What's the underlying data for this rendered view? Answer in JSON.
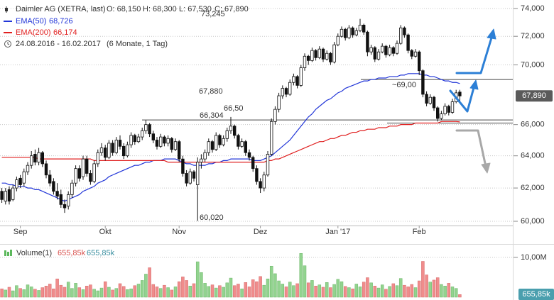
{
  "chart_data": {
    "type": "candlestick",
    "title": "Daimler AG (XETRA, last)",
    "ohlc_labels": [
      "O: 68,150",
      "H: 68,300",
      "L: 67,530",
      "C: 67,890"
    ],
    "date_range": "24.08.2016 - 16.02.2017",
    "period": "(6 Monate, 1 Tag)",
    "categories": [
      null,
      null,
      null,
      null,
      null,
      "Sep",
      null,
      null,
      null,
      null,
      null,
      null,
      null,
      null,
      null,
      null,
      null,
      null,
      null,
      null,
      null,
      null,
      null,
      null,
      null,
      null,
      null,
      null,
      "Okt",
      null,
      null,
      null,
      null,
      null,
      null,
      null,
      null,
      null,
      null,
      null,
      null,
      null,
      null,
      null,
      null,
      null,
      null,
      null,
      "Nov",
      null,
      null,
      null,
      null,
      null,
      null,
      null,
      null,
      null,
      null,
      null,
      null,
      null,
      null,
      null,
      null,
      null,
      null,
      null,
      null,
      null,
      "Dez",
      null,
      null,
      null,
      null,
      null,
      null,
      null,
      null,
      null,
      null,
      null,
      null,
      null,
      null,
      null,
      null,
      null,
      null,
      null,
      null,
      "Jan '17",
      null,
      null,
      null,
      null,
      null,
      null,
      null,
      null,
      null,
      null,
      null,
      null,
      null,
      null,
      null,
      null,
      null,
      null,
      null,
      null,
      null,
      "Feb",
      null,
      null,
      null,
      null,
      null,
      null,
      null,
      null,
      null,
      null,
      null
    ],
    "open": [
      61.8,
      61.2,
      61.9,
      61.3,
      62.0,
      62.6,
      62.3,
      63.0,
      63.4,
      64.1,
      63.6,
      64.2,
      63.5,
      62.8,
      62.4,
      61.8,
      61.6,
      61.0,
      60.9,
      61.6,
      62.3,
      63.2,
      62.7,
      63.8,
      62.9,
      62.4,
      63.5,
      64.2,
      64.5,
      63.9,
      64.8,
      64.2,
      65.0,
      64.6,
      64.0,
      64.7,
      65.3,
      64.9,
      65.2,
      65.6,
      66.0,
      65.4,
      65.0,
      64.6,
      65.2,
      64.8,
      65.1,
      64.4,
      64.9,
      63.8,
      62.9,
      62.3,
      63.0,
      62.2,
      63.6,
      63.8,
      64.2,
      64.9,
      64.4,
      65.3,
      64.7,
      65.1,
      65.6,
      65.9,
      65.3,
      64.6,
      64.9,
      64.2,
      63.9,
      63.2,
      62.4,
      62.0,
      62.8,
      64.1,
      66.2,
      67.0,
      67.9,
      68.4,
      68.0,
      68.8,
      69.2,
      68.6,
      69.8,
      70.6,
      70.3,
      71.0,
      70.5,
      71.1,
      70.4,
      70.8,
      70.2,
      71.4,
      72.0,
      72.5,
      71.9,
      72.6,
      72.1,
      72.4,
      72.8,
      72.3,
      70.9,
      71.2,
      70.4,
      70.9,
      71.3,
      70.7,
      71.2,
      70.8,
      71.5,
      72.6,
      72.1,
      71.0,
      70.6,
      70.9,
      69.6,
      68.0,
      67.4,
      67.8,
      67.1,
      66.4,
      66.7,
      67.2,
      66.8,
      67.5,
      68.15
    ],
    "high": [
      62.0,
      62.0,
      62.1,
      62.2,
      62.7,
      62.8,
      63.2,
      63.6,
      64.3,
      64.4,
      64.5,
      64.3,
      63.7,
      63.1,
      62.6,
      62.3,
      61.9,
      61.3,
      61.8,
      62.5,
      63.4,
      63.4,
      64.0,
      64.0,
      63.1,
      63.7,
      64.4,
      64.8,
      64.7,
      65.0,
      65.0,
      65.2,
      65.3,
      64.8,
      64.9,
      65.5,
      65.4,
      65.4,
      65.8,
      66.304,
      66.1,
      65.6,
      65.2,
      65.4,
      65.3,
      65.3,
      65.2,
      65.1,
      65.0,
      64.0,
      63.1,
      63.2,
      63.1,
      63.9,
      64.1,
      64.4,
      65.1,
      65.0,
      65.5,
      65.4,
      65.3,
      65.8,
      66.5,
      66.0,
      65.4,
      65.1,
      65.0,
      64.4,
      64.0,
      63.4,
      62.6,
      63.0,
      64.3,
      66.4,
      67.2,
      68.1,
      68.6,
      68.5,
      69.0,
      69.4,
      69.3,
      70.0,
      70.8,
      70.7,
      71.2,
      71.1,
      71.3,
      71.2,
      71.0,
      70.9,
      71.6,
      72.2,
      72.7,
      72.6,
      72.8,
      72.7,
      72.6,
      73.245,
      72.9,
      72.4,
      71.4,
      71.3,
      71.1,
      71.5,
      71.4,
      71.4,
      71.3,
      71.7,
      72.8,
      72.7,
      72.2,
      71.1,
      71.1,
      71.0,
      69.7,
      68.2,
      68.0,
      67.9,
      67.2,
      66.9,
      67.4,
      67.3,
      67.7,
      68.3,
      68.3
    ],
    "low": [
      61.1,
      61.0,
      61.0,
      61.2,
      61.8,
      62.0,
      62.1,
      62.8,
      63.2,
      63.4,
      63.4,
      63.3,
      62.6,
      62.1,
      61.6,
      61.3,
      60.8,
      60.5,
      60.7,
      61.4,
      62.1,
      62.4,
      62.5,
      62.7,
      62.2,
      62.3,
      63.3,
      64.0,
      63.7,
      63.8,
      64.0,
      64.1,
      64.4,
      63.8,
      63.9,
      64.5,
      64.7,
      64.8,
      65.0,
      65.4,
      65.2,
      64.8,
      64.4,
      64.5,
      64.6,
      64.6,
      64.2,
      64.3,
      63.6,
      62.7,
      62.1,
      62.2,
      62.4,
      60.02,
      63.2,
      63.6,
      64.0,
      64.2,
      64.3,
      64.5,
      64.6,
      64.9,
      65.4,
      65.1,
      64.4,
      64.5,
      64.0,
      63.7,
      63.0,
      62.2,
      61.7,
      61.8,
      62.7,
      64.0,
      66.0,
      66.8,
      67.7,
      67.8,
      67.9,
      68.6,
      68.4,
      68.5,
      69.6,
      70.0,
      70.2,
      70.3,
      70.4,
      70.2,
      70.3,
      70.0,
      70.1,
      71.3,
      71.9,
      71.7,
      71.8,
      71.9,
      72.0,
      72.3,
      72.1,
      70.6,
      70.7,
      70.2,
      70.3,
      70.8,
      70.5,
      70.6,
      70.6,
      70.7,
      71.4,
      71.9,
      70.8,
      70.4,
      70.5,
      69.3,
      67.8,
      67.2,
      67.3,
      66.9,
      66.2,
      66.3,
      66.6,
      66.6,
      66.7,
      67.4,
      67.53
    ],
    "close": [
      61.3,
      61.8,
      61.2,
      62.0,
      62.5,
      62.2,
      63.0,
      63.4,
      64.0,
      63.6,
      64.2,
      63.5,
      62.8,
      62.3,
      61.8,
      61.5,
      61.0,
      60.8,
      61.6,
      62.3,
      63.2,
      62.6,
      63.8,
      62.9,
      62.4,
      63.5,
      64.2,
      64.5,
      63.9,
      64.8,
      64.2,
      65.0,
      64.6,
      64.0,
      64.7,
      65.3,
      64.9,
      65.2,
      65.6,
      66.0,
      65.4,
      65.0,
      64.6,
      65.2,
      64.8,
      65.1,
      64.4,
      64.9,
      63.8,
      62.9,
      62.3,
      63.0,
      62.6,
      63.6,
      63.8,
      64.2,
      64.9,
      64.4,
      65.3,
      64.7,
      65.1,
      65.6,
      65.9,
      65.3,
      64.6,
      64.9,
      64.2,
      63.9,
      63.2,
      62.4,
      62.0,
      62.8,
      64.1,
      66.2,
      67.0,
      67.9,
      68.4,
      68.0,
      68.8,
      69.2,
      68.6,
      69.8,
      70.6,
      70.3,
      71.0,
      70.5,
      71.1,
      70.4,
      70.8,
      70.2,
      71.4,
      72.0,
      72.5,
      71.9,
      72.6,
      72.1,
      72.4,
      72.8,
      72.3,
      70.9,
      71.2,
      70.4,
      70.9,
      71.3,
      70.7,
      71.2,
      70.8,
      71.5,
      72.6,
      72.1,
      71.0,
      70.6,
      70.9,
      69.6,
      68.0,
      67.4,
      67.8,
      67.1,
      66.4,
      66.7,
      67.2,
      66.8,
      67.5,
      68.1,
      67.89
    ],
    "up_color": "#ffffff",
    "down_color": "#111111",
    "series": [
      {
        "name": "EMA(50)",
        "color": "#2236d8",
        "last_label": "68,726",
        "values": [
          62.3,
          62.3,
          62.2,
          62.2,
          62.1,
          62.1,
          62.1,
          62.0,
          62.0,
          61.9,
          61.9,
          61.8,
          61.7,
          61.6,
          61.5,
          61.4,
          61.3,
          61.2,
          61.3,
          61.4,
          61.5,
          61.6,
          61.8,
          61.9,
          62.0,
          62.1,
          62.3,
          62.4,
          62.5,
          62.7,
          62.8,
          62.9,
          63.0,
          63.1,
          63.2,
          63.3,
          63.4,
          63.4,
          63.5,
          63.6,
          63.6,
          63.7,
          63.7,
          63.7,
          63.8,
          63.8,
          63.8,
          63.8,
          63.7,
          63.6,
          63.5,
          63.5,
          63.4,
          63.4,
          63.4,
          63.4,
          63.5,
          63.5,
          63.6,
          63.6,
          63.7,
          63.7,
          63.8,
          63.8,
          63.8,
          63.8,
          63.8,
          63.8,
          63.7,
          63.7,
          63.7,
          63.8,
          63.9,
          64.0,
          64.2,
          64.4,
          64.6,
          64.8,
          65.0,
          65.3,
          65.6,
          65.9,
          66.2,
          66.5,
          66.7,
          67.0,
          67.2,
          67.4,
          67.6,
          67.7,
          67.9,
          68.1,
          68.2,
          68.4,
          68.5,
          68.6,
          68.7,
          68.8,
          68.9,
          68.9,
          69.0,
          69.0,
          69.1,
          69.1,
          69.1,
          69.2,
          69.2,
          69.2,
          69.3,
          69.3,
          69.4,
          69.4,
          69.4,
          69.4,
          69.3,
          69.3,
          69.2,
          69.2,
          69.1,
          69.0,
          68.9,
          68.9,
          68.8,
          68.8,
          68.726
        ]
      },
      {
        "name": "EMA(200)",
        "color": "#e02020",
        "last_label": "66,174",
        "values": [
          63.9,
          63.9,
          63.9,
          63.9,
          63.9,
          63.9,
          63.9,
          63.9,
          63.9,
          63.9,
          63.8,
          63.8,
          63.8,
          63.8,
          63.8,
          63.8,
          63.8,
          63.8,
          63.8,
          63.8,
          63.8,
          63.8,
          63.8,
          63.8,
          63.8,
          63.7,
          63.7,
          63.7,
          63.7,
          63.7,
          63.7,
          63.7,
          63.7,
          63.7,
          63.7,
          63.7,
          63.7,
          63.7,
          63.7,
          63.7,
          63.7,
          63.7,
          63.7,
          63.7,
          63.7,
          63.6,
          63.6,
          63.6,
          63.6,
          63.6,
          63.6,
          63.6,
          63.6,
          63.6,
          63.6,
          63.6,
          63.6,
          63.6,
          63.6,
          63.6,
          63.6,
          63.6,
          63.6,
          63.6,
          63.6,
          63.6,
          63.6,
          63.6,
          63.6,
          63.6,
          63.6,
          63.6,
          63.7,
          63.7,
          63.8,
          63.8,
          63.9,
          64.0,
          64.1,
          64.2,
          64.3,
          64.4,
          64.5,
          64.6,
          64.7,
          64.8,
          64.9,
          64.9,
          65.0,
          65.1,
          65.1,
          65.2,
          65.3,
          65.3,
          65.4,
          65.5,
          65.5,
          65.6,
          65.6,
          65.7,
          65.7,
          65.7,
          65.8,
          65.8,
          65.8,
          65.9,
          65.9,
          65.9,
          66.0,
          66.0,
          66.0,
          66.0,
          66.1,
          66.1,
          66.1,
          66.1,
          66.1,
          66.1,
          66.1,
          66.2,
          66.2,
          66.2,
          66.2,
          66.2,
          66.174
        ]
      }
    ],
    "ylim": [
      60,
      74
    ],
    "log_scale": true,
    "grid": true,
    "yticks": [
      {
        "value": 60,
        "label": "60,000"
      },
      {
        "value": 62,
        "label": "62,000"
      },
      {
        "value": 64,
        "label": "64,000"
      },
      {
        "value": 66,
        "label": "66,000"
      },
      {
        "value": 70,
        "label": "70,000"
      },
      {
        "value": 72,
        "label": "72,000"
      },
      {
        "value": 74,
        "label": "74,000"
      }
    ],
    "last_price": {
      "value": 67.89,
      "label": "67,890"
    },
    "levels": [
      66.304,
      69.0,
      66.1
    ],
    "annotations": [
      "73,245",
      "67,880",
      "66,50",
      "66,304",
      "60,020",
      "~69,00"
    ],
    "volume": {
      "title": "Volume(1)",
      "header_values": [
        "655,85k",
        "655,85k"
      ],
      "up_color": "#92d38f",
      "down_color": "#f08c8c",
      "ylim": [
        0,
        12.3
      ],
      "yticks": [
        {
          "value": 10,
          "label": "10,00M"
        }
      ],
      "last": {
        "value": 0.65585,
        "label": "655,85k"
      },
      "values": [
        2.1,
        1.8,
        2.5,
        1.6,
        2.9,
        2.2,
        1.9,
        3.1,
        2.6,
        2.0,
        1.7,
        2.4,
        2.8,
        3.3,
        2.1,
        4.6,
        3.0,
        2.5,
        3.8,
        2.2,
        3.5,
        2.4,
        1.9,
        2.8,
        3.1,
        2.0,
        1.6,
        2.3,
        3.9,
        2.5,
        1.8,
        2.2,
        3.4,
        2.7,
        1.9,
        2.1,
        2.9,
        3.3,
        4.2,
        5.8,
        7.4,
        3.2,
        2.6,
        2.2,
        3.0,
        2.4,
        1.8,
        2.6,
        3.9,
        5.1,
        4.2,
        2.8,
        3.4,
        8.9,
        6.2,
        3.5,
        2.7,
        3.1,
        2.3,
        2.9,
        2.5,
        3.6,
        4.8,
        2.9,
        3.3,
        2.1,
        3.7,
        2.6,
        4.4,
        3.9,
        5.2,
        3.0,
        4.6,
        7.8,
        5.9,
        4.1,
        3.3,
        2.6,
        3.8,
        2.9,
        3.4,
        11.0,
        7.9,
        3.6,
        4.2,
        2.8,
        3.1,
        2.5,
        3.7,
        2.4,
        3.2,
        4.5,
        3.9,
        2.7,
        2.4,
        2.1,
        3.3,
        2.6,
        3.8,
        4.9,
        3.6,
        2.8,
        2.3,
        3.1,
        2.0,
        2.7,
        3.4,
        2.9,
        4.7,
        3.0,
        2.6,
        3.2,
        2.4,
        4.1,
        9.0,
        5.6,
        3.8,
        4.3,
        4.9,
        3.2,
        2.8,
        3.5,
        2.6,
        2.2,
        0.65585
      ]
    }
  }
}
